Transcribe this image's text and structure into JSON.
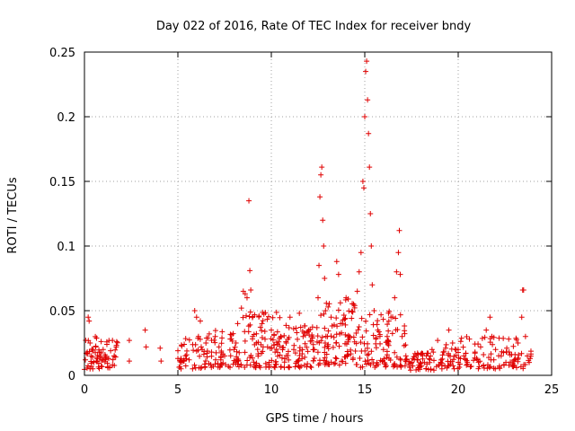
{
  "chart_data": {
    "type": "scatter",
    "title": "Day 022 of 2016, Rate Of TEC Index for receiver bndy",
    "xlabel": "GPS time / hours",
    "ylabel": "ROTI / TECUs",
    "xlim": [
      0,
      25
    ],
    "ylim": [
      0,
      0.25
    ],
    "x_ticks": [
      0,
      5,
      10,
      15,
      20,
      25
    ],
    "x_tick_labels": [
      "0",
      "5",
      "10",
      "15",
      "20",
      "25"
    ],
    "y_ticks": [
      0,
      0.05,
      0.1,
      0.15,
      0.2,
      0.25
    ],
    "y_tick_labels": [
      "0",
      "0.05",
      "0.1",
      "0.15",
      "0.2",
      "0.25"
    ],
    "grid": true,
    "marker": "+",
    "series": [
      {
        "name": "ROTI",
        "color": "#e00000",
        "points": [
          [
            0.05,
            0.012
          ],
          [
            0.15,
            0.018
          ],
          [
            0.2,
            0.045
          ],
          [
            0.25,
            0.042
          ],
          [
            0.3,
            0.025
          ],
          [
            0.35,
            0.015
          ],
          [
            0.45,
            0.02
          ],
          [
            0.5,
            0.01
          ],
          [
            0.6,
            0.022
          ],
          [
            0.7,
            0.014
          ],
          [
            0.8,
            0.018
          ],
          [
            0.9,
            0.012
          ],
          [
            1.0,
            0.02
          ],
          [
            1.1,
            0.016
          ],
          [
            1.2,
            0.024
          ],
          [
            1.3,
            0.013
          ],
          [
            1.4,
            0.019
          ],
          [
            1.5,
            0.027
          ],
          [
            1.6,
            0.015
          ],
          [
            1.7,
            0.022
          ],
          [
            0.3,
            0.005
          ],
          [
            0.9,
            0.007
          ],
          [
            1.5,
            0.008
          ],
          [
            2.4,
            0.027
          ],
          [
            2.4,
            0.011
          ],
          [
            3.25,
            0.035
          ],
          [
            3.3,
            0.022
          ],
          [
            4.05,
            0.021
          ],
          [
            4.1,
            0.011
          ],
          [
            5.0,
            0.013
          ],
          [
            5.0,
            0.019
          ],
          [
            5.2,
            0.01
          ],
          [
            5.4,
            0.015
          ],
          [
            5.6,
            0.012
          ],
          [
            5.9,
            0.05
          ],
          [
            6.0,
            0.045
          ],
          [
            6.1,
            0.03
          ],
          [
            6.2,
            0.042
          ],
          [
            6.3,
            0.02
          ],
          [
            6.5,
            0.025
          ],
          [
            6.8,
            0.018
          ],
          [
            7.0,
            0.03
          ],
          [
            7.2,
            0.022
          ],
          [
            7.5,
            0.015
          ],
          [
            7.8,
            0.028
          ],
          [
            8.0,
            0.02
          ],
          [
            8.2,
            0.04
          ],
          [
            8.4,
            0.052
          ],
          [
            8.5,
            0.065
          ],
          [
            8.6,
            0.063
          ],
          [
            8.7,
            0.06
          ],
          [
            8.8,
            0.135
          ],
          [
            8.85,
            0.081
          ],
          [
            8.9,
            0.066
          ],
          [
            9.0,
            0.03
          ],
          [
            9.2,
            0.025
          ],
          [
            9.5,
            0.04
          ],
          [
            9.8,
            0.022
          ],
          [
            10.0,
            0.035
          ],
          [
            10.2,
            0.018
          ],
          [
            10.5,
            0.03
          ],
          [
            10.8,
            0.025
          ],
          [
            11.0,
            0.045
          ],
          [
            11.2,
            0.02
          ],
          [
            11.5,
            0.048
          ],
          [
            11.7,
            0.03
          ],
          [
            12.0,
            0.035
          ],
          [
            12.3,
            0.02
          ],
          [
            12.5,
            0.06
          ],
          [
            12.55,
            0.085
          ],
          [
            12.6,
            0.138
          ],
          [
            12.65,
            0.155
          ],
          [
            12.7,
            0.161
          ],
          [
            12.75,
            0.12
          ],
          [
            12.8,
            0.1
          ],
          [
            12.85,
            0.075
          ],
          [
            12.9,
            0.05
          ],
          [
            13.0,
            0.03
          ],
          [
            13.2,
            0.045
          ],
          [
            13.5,
            0.088
          ],
          [
            13.6,
            0.078
          ],
          [
            13.8,
            0.04
          ],
          [
            14.0,
            0.06
          ],
          [
            14.2,
            0.03
          ],
          [
            14.4,
            0.055
          ],
          [
            14.6,
            0.065
          ],
          [
            14.7,
            0.08
          ],
          [
            14.8,
            0.095
          ],
          [
            14.9,
            0.15
          ],
          [
            14.95,
            0.145
          ],
          [
            15.0,
            0.2
          ],
          [
            15.05,
            0.235
          ],
          [
            15.1,
            0.243
          ],
          [
            15.15,
            0.213
          ],
          [
            15.2,
            0.187
          ],
          [
            15.25,
            0.161
          ],
          [
            15.3,
            0.125
          ],
          [
            15.35,
            0.1
          ],
          [
            15.4,
            0.07
          ],
          [
            15.5,
            0.05
          ],
          [
            15.7,
            0.035
          ],
          [
            16.0,
            0.02
          ],
          [
            16.2,
            0.03
          ],
          [
            16.4,
            0.045
          ],
          [
            16.6,
            0.06
          ],
          [
            16.7,
            0.08
          ],
          [
            16.8,
            0.095
          ],
          [
            16.85,
            0.112
          ],
          [
            16.9,
            0.078
          ],
          [
            17.0,
            0.03
          ],
          [
            17.2,
            0.015
          ],
          [
            17.5,
            0.01
          ],
          [
            17.8,
            0.012
          ],
          [
            18.0,
            0.009
          ],
          [
            18.3,
            0.015
          ],
          [
            18.6,
            0.02
          ],
          [
            18.9,
            0.027
          ],
          [
            19.2,
            0.018
          ],
          [
            19.5,
            0.035
          ],
          [
            19.7,
            0.025
          ],
          [
            20.0,
            0.02
          ],
          [
            20.3,
            0.015
          ],
          [
            20.6,
            0.028
          ],
          [
            20.9,
            0.018
          ],
          [
            21.2,
            0.022
          ],
          [
            21.5,
            0.035
          ],
          [
            21.7,
            0.045
          ],
          [
            21.8,
            0.03
          ],
          [
            22.0,
            0.02
          ],
          [
            22.3,
            0.015
          ],
          [
            22.6,
            0.018
          ],
          [
            23.0,
            0.012
          ],
          [
            23.2,
            0.025
          ],
          [
            23.4,
            0.045
          ],
          [
            23.45,
            0.066
          ],
          [
            23.5,
            0.066
          ],
          [
            23.6,
            0.03
          ],
          [
            23.7,
            0.015
          ],
          [
            23.8,
            0.01
          ],
          [
            23.85,
            0.013
          ]
        ]
      }
    ],
    "dense_bands": [
      {
        "x_start": 0.0,
        "x_end": 1.8,
        "y_low": 0.004,
        "y_high": 0.03,
        "density": 55
      },
      {
        "x_start": 5.0,
        "x_end": 6.5,
        "y_low": 0.005,
        "y_high": 0.03,
        "density": 40
      },
      {
        "x_start": 6.5,
        "x_end": 8.3,
        "y_low": 0.006,
        "y_high": 0.035,
        "density": 60
      },
      {
        "x_start": 8.3,
        "x_end": 10.5,
        "y_low": 0.006,
        "y_high": 0.05,
        "density": 90
      },
      {
        "x_start": 10.5,
        "x_end": 12.5,
        "y_low": 0.006,
        "y_high": 0.04,
        "density": 80
      },
      {
        "x_start": 12.5,
        "x_end": 14.5,
        "y_low": 0.008,
        "y_high": 0.06,
        "density": 90
      },
      {
        "x_start": 14.5,
        "x_end": 17.2,
        "y_low": 0.006,
        "y_high": 0.05,
        "density": 100
      },
      {
        "x_start": 17.2,
        "x_end": 19.0,
        "y_low": 0.004,
        "y_high": 0.018,
        "density": 50
      },
      {
        "x_start": 19.0,
        "x_end": 21.0,
        "y_low": 0.005,
        "y_high": 0.03,
        "density": 55
      },
      {
        "x_start": 21.0,
        "x_end": 23.9,
        "y_low": 0.005,
        "y_high": 0.03,
        "density": 70
      }
    ]
  }
}
